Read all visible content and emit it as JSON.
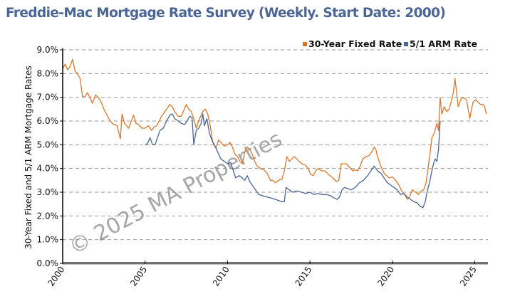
{
  "title": "Freddie-Mac Mortgage Rate Survey (Weekly. Start Date: 2000)",
  "watermark": "© 2025 MA Properties",
  "chart_data": {
    "type": "line",
    "title": "Freddie-Mac Mortgage Rate Survey (Weekly. Start Date: 2000)",
    "xlabel": "",
    "ylabel": "30-Year Fixed and 5/1 ARM Mortgage Rates",
    "xlim": [
      2000,
      2025.8
    ],
    "ylim": [
      0,
      9
    ],
    "grid": true,
    "legend_position": "top-right",
    "x_ticks": [
      2000,
      2005,
      2010,
      2015,
      2020,
      2025
    ],
    "x_tick_labels": [
      "2000",
      "2005",
      "2010",
      "2015",
      "2020",
      "2025"
    ],
    "y_ticks": [
      0,
      1,
      2,
      3,
      4,
      5,
      6,
      7,
      8,
      9
    ],
    "y_tick_labels": [
      "0.0%",
      "1.0%",
      "2.0%",
      "3.0%",
      "4.0%",
      "5.0%",
      "6.0%",
      "7.0%",
      "8.0%",
      "9.0%"
    ],
    "series": [
      {
        "name": "30-Year Fixed Rate",
        "color": "#d9782d",
        "x": [
          2000.0,
          2000.15,
          2000.3,
          2000.45,
          2000.6,
          2000.75,
          2000.9,
          2001.05,
          2001.2,
          2001.35,
          2001.5,
          2001.65,
          2001.8,
          2002.0,
          2002.15,
          2002.3,
          2002.5,
          2002.65,
          2002.8,
          2003.0,
          2003.15,
          2003.3,
          2003.5,
          2003.6,
          2003.75,
          2004.0,
          2004.3,
          2004.45,
          2004.6,
          2004.8,
          2005.0,
          2005.2,
          2005.4,
          2005.55,
          2005.7,
          2005.85,
          2006.0,
          2006.2,
          2006.5,
          2006.65,
          2006.8,
          2007.0,
          2007.2,
          2007.5,
          2007.65,
          2007.8,
          2007.95,
          2008.1,
          2008.3,
          2008.5,
          2008.65,
          2008.8,
          2008.95,
          2009.1,
          2009.3,
          2009.45,
          2009.6,
          2009.8,
          2010.0,
          2010.15,
          2010.3,
          2010.45,
          2010.6,
          2010.75,
          2010.9,
          2011.05,
          2011.2,
          2011.35,
          2011.5,
          2011.65,
          2011.8,
          2012.0,
          2012.2,
          2012.4,
          2012.6,
          2012.75,
          2012.9,
          2013.1,
          2013.3,
          2013.45,
          2013.6,
          2013.75,
          2013.9,
          2014.05,
          2014.2,
          2014.35,
          2014.5,
          2014.7,
          2014.9,
          2015.05,
          2015.2,
          2015.35,
          2015.5,
          2015.7,
          2015.9,
          2016.05,
          2016.2,
          2016.4,
          2016.6,
          2016.75,
          2016.9,
          2017.05,
          2017.2,
          2017.4,
          2017.6,
          2017.75,
          2017.9,
          2018.05,
          2018.2,
          2018.4,
          2018.6,
          2018.75,
          2018.9,
          2019.0,
          2019.1,
          2019.3,
          2019.5,
          2019.65,
          2019.8,
          2020.0,
          2020.2,
          2020.4,
          2020.6,
          2020.75,
          2020.9,
          2021.05,
          2021.2,
          2021.4,
          2021.6,
          2021.75,
          2021.9,
          2022.05,
          2022.2,
          2022.3,
          2022.4,
          2022.55,
          2022.7,
          2022.8,
          2022.9,
          2023.0,
          2023.15,
          2023.3,
          2023.45,
          2023.6,
          2023.7,
          2023.8,
          2023.9,
          2024.0,
          2024.15,
          2024.3,
          2024.5,
          2024.7,
          2024.8,
          2024.9,
          2025.05,
          2025.2,
          2025.35,
          2025.5,
          2025.6,
          2025.7
        ],
        "values": [
          8.2,
          8.4,
          8.15,
          8.3,
          8.6,
          8.1,
          8.0,
          7.8,
          7.05,
          7.0,
          7.2,
          7.0,
          6.75,
          7.1,
          7.0,
          6.85,
          6.5,
          6.3,
          6.1,
          5.9,
          5.85,
          5.8,
          5.25,
          6.3,
          5.9,
          5.7,
          6.25,
          5.9,
          5.85,
          5.7,
          5.7,
          5.8,
          5.6,
          5.75,
          5.8,
          6.0,
          6.2,
          6.4,
          6.7,
          6.6,
          6.4,
          6.2,
          6.2,
          6.7,
          6.5,
          6.4,
          6.1,
          5.7,
          6.1,
          6.4,
          6.5,
          6.3,
          5.8,
          5.1,
          4.85,
          5.2,
          5.1,
          4.95,
          5.0,
          5.1,
          4.9,
          4.6,
          4.5,
          4.3,
          4.2,
          4.7,
          4.9,
          4.8,
          4.6,
          4.3,
          4.1,
          4.0,
          3.95,
          3.8,
          3.5,
          3.5,
          3.4,
          3.5,
          3.55,
          3.9,
          4.5,
          4.3,
          4.4,
          4.5,
          4.4,
          4.3,
          4.2,
          4.15,
          4.0,
          3.75,
          3.7,
          3.9,
          4.0,
          3.9,
          3.9,
          3.8,
          3.7,
          3.6,
          3.45,
          3.5,
          4.2,
          4.2,
          4.2,
          4.05,
          3.9,
          3.95,
          3.9,
          4.1,
          4.4,
          4.5,
          4.55,
          4.7,
          4.9,
          4.8,
          4.5,
          4.1,
          3.8,
          3.7,
          3.6,
          3.65,
          3.5,
          3.3,
          3.0,
          2.9,
          2.7,
          2.8,
          3.1,
          3.0,
          2.9,
          3.05,
          3.1,
          3.4,
          4.2,
          4.7,
          5.3,
          5.5,
          5.9,
          5.6,
          7.0,
          6.3,
          6.6,
          6.4,
          6.5,
          6.9,
          7.2,
          7.8,
          7.2,
          6.6,
          6.9,
          7.0,
          6.9,
          6.1,
          6.5,
          6.8,
          6.9,
          6.8,
          6.7,
          6.7,
          6.6,
          6.3
        ]
      },
      {
        "name": "5/1 ARM Rate",
        "color": "#4a6596",
        "x": [
          2005.0,
          2005.15,
          2005.3,
          2005.45,
          2005.6,
          2005.75,
          2005.9,
          2006.1,
          2006.3,
          2006.5,
          2006.65,
          2006.8,
          2007.0,
          2007.2,
          2007.4,
          2007.55,
          2007.7,
          2007.85,
          2007.95,
          2008.1,
          2008.25,
          2008.4,
          2008.5,
          2008.6,
          2008.75,
          2008.9,
          2009.05,
          2009.2,
          2009.4,
          2009.6,
          2009.8,
          2010.0,
          2010.2,
          2010.35,
          2010.5,
          2010.7,
          2010.9,
          2011.05,
          2011.2,
          2011.35,
          2011.5,
          2011.7,
          2011.9,
          2012.15,
          2012.4,
          2012.65,
          2012.9,
          2013.1,
          2013.3,
          2013.45,
          2013.55,
          2013.75,
          2013.95,
          2014.2,
          2014.5,
          2014.75,
          2015.0,
          2015.25,
          2015.5,
          2015.75,
          2016.0,
          2016.25,
          2016.5,
          2016.65,
          2016.8,
          2016.95,
          2017.1,
          2017.3,
          2017.5,
          2017.75,
          2018.0,
          2018.25,
          2018.5,
          2018.7,
          2018.9,
          2019.1,
          2019.3,
          2019.5,
          2019.7,
          2019.9,
          2020.1,
          2020.3,
          2020.5,
          2020.7,
          2020.9,
          2021.1,
          2021.3,
          2021.5,
          2021.7,
          2021.85,
          2022.0,
          2022.1,
          2022.25,
          2022.4,
          2022.5,
          2022.6,
          2022.7,
          2022.8,
          2022.9
        ],
        "values": [
          5.0,
          5.05,
          5.3,
          5.0,
          5.0,
          5.3,
          5.6,
          5.7,
          6.0,
          6.25,
          6.3,
          6.1,
          6.0,
          5.9,
          5.85,
          6.0,
          6.2,
          6.15,
          5.0,
          5.6,
          5.7,
          5.9,
          6.3,
          5.8,
          6.1,
          5.5,
          5.2,
          5.0,
          4.7,
          4.4,
          4.3,
          4.2,
          4.25,
          3.9,
          3.6,
          3.7,
          3.6,
          3.5,
          3.7,
          3.45,
          3.3,
          3.1,
          2.9,
          2.85,
          2.8,
          2.75,
          2.7,
          2.65,
          2.6,
          2.6,
          3.2,
          3.1,
          3.0,
          3.05,
          3.0,
          2.95,
          3.0,
          2.9,
          2.95,
          2.9,
          2.9,
          2.85,
          2.75,
          2.7,
          2.8,
          3.1,
          3.2,
          3.15,
          3.1,
          3.2,
          3.4,
          3.5,
          3.7,
          3.9,
          4.1,
          3.9,
          3.8,
          3.6,
          3.4,
          3.3,
          3.2,
          3.1,
          2.9,
          2.95,
          2.8,
          2.7,
          2.6,
          2.55,
          2.4,
          2.35,
          2.6,
          3.0,
          3.4,
          3.9,
          4.2,
          4.4,
          4.3,
          4.8,
          6.0
        ]
      }
    ]
  }
}
